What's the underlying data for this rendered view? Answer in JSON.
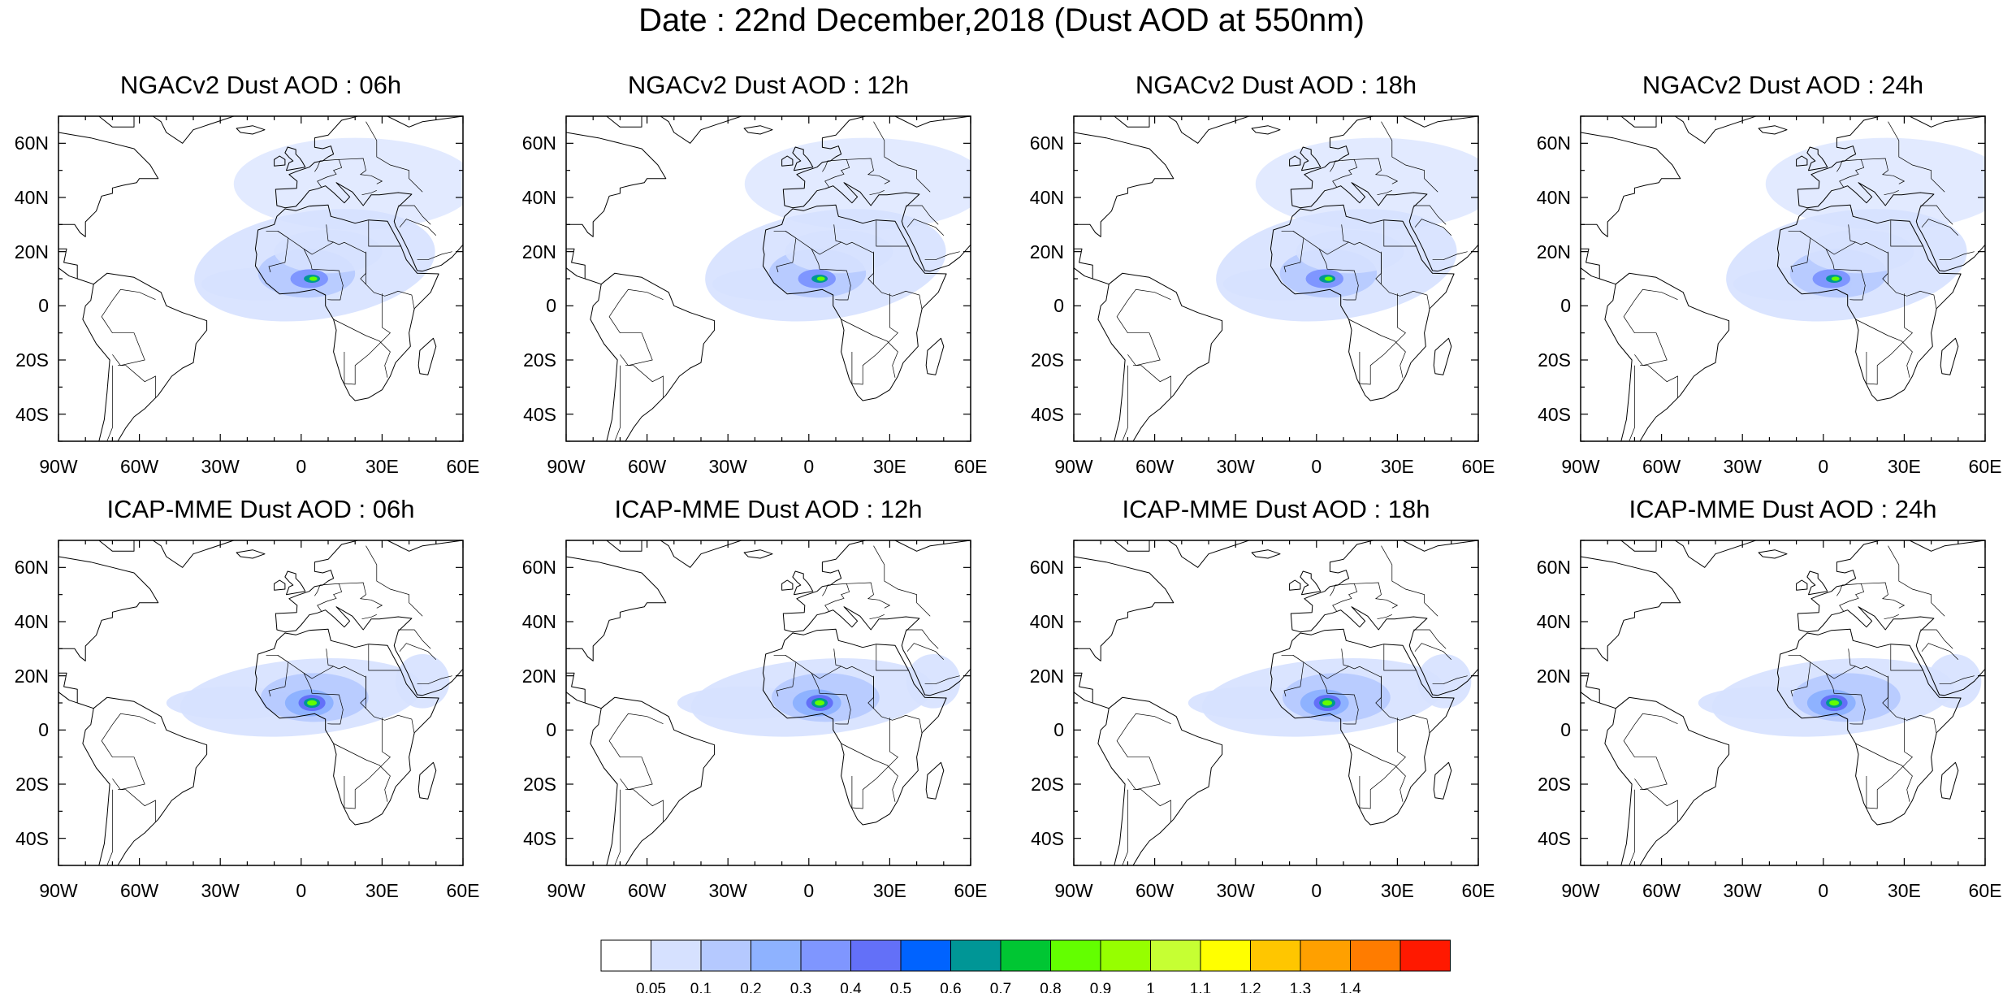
{
  "title": "Date : 22nd December,2018 (Dust AOD at 550nm)",
  "extent": {
    "lon": [
      -90,
      60
    ],
    "lat": [
      -50,
      70
    ]
  },
  "lat_ticks": [
    {
      "value": 60,
      "label": "60N"
    },
    {
      "value": 40,
      "label": "40N"
    },
    {
      "value": 20,
      "label": "20N"
    },
    {
      "value": 0,
      "label": "0"
    },
    {
      "value": -20,
      "label": "20S"
    },
    {
      "value": -40,
      "label": "40S"
    }
  ],
  "lon_ticks": [
    {
      "value": -90,
      "label": "90W"
    },
    {
      "value": -60,
      "label": "60W"
    },
    {
      "value": -30,
      "label": "30W"
    },
    {
      "value": 0,
      "label": "0"
    },
    {
      "value": 30,
      "label": "30E"
    },
    {
      "value": 60,
      "label": "60E"
    }
  ],
  "panels": [
    {
      "title": "NGACv2 Dust AOD : 06h",
      "row": 0,
      "col": 0
    },
    {
      "title": "NGACv2 Dust AOD : 12h",
      "row": 0,
      "col": 1
    },
    {
      "title": "NGACv2 Dust AOD : 18h",
      "row": 0,
      "col": 2
    },
    {
      "title": "NGACv2 Dust AOD : 24h",
      "row": 0,
      "col": 3
    },
    {
      "title": "ICAP-MME Dust AOD : 06h",
      "row": 1,
      "col": 0
    },
    {
      "title": "ICAP-MME Dust AOD : 12h",
      "row": 1,
      "col": 1
    },
    {
      "title": "ICAP-MME Dust AOD : 18h",
      "row": 1,
      "col": 2
    },
    {
      "title": "ICAP-MME Dust AOD : 24h",
      "row": 1,
      "col": 3
    }
  ],
  "colorbar": {
    "colors": [
      "#ffffff",
      "#d6e1ff",
      "#b5c9ff",
      "#8eb2ff",
      "#7f96ff",
      "#6370f8",
      "#0063ff",
      "#009696",
      "#00c633",
      "#63ff00",
      "#96ff00",
      "#c6ff33",
      "#ffff00",
      "#ffc600",
      "#ffa000",
      "#ff7c00",
      "#ff1900"
    ],
    "labels": [
      "0.05",
      "0.1",
      "0.2",
      "0.3",
      "0.4",
      "0.5",
      "0.6",
      "0.7",
      "0.8",
      "0.9",
      "1",
      "1.1",
      "1.2",
      "1.3",
      "1.4"
    ]
  },
  "colors": {
    "coastline": "#000000",
    "border": "#000000",
    "frame": "#000000"
  }
}
